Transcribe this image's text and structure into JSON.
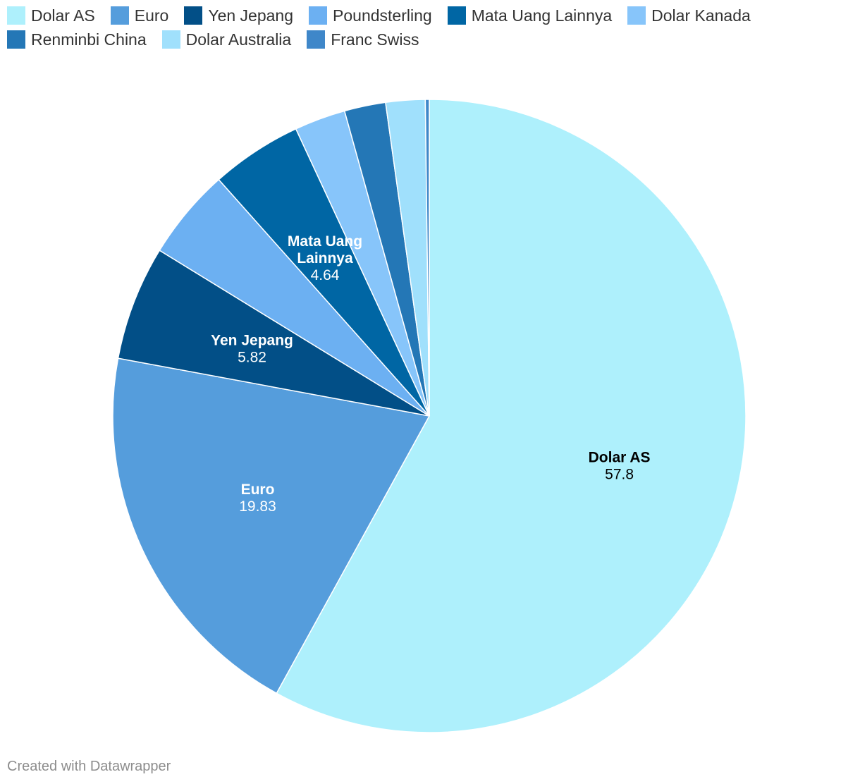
{
  "credit": "Created with Datawrapper",
  "chart_data": {
    "type": "pie",
    "title": "",
    "categories": [
      "Dolar AS",
      "Euro",
      "Yen Jepang",
      "Poundsterling",
      "Mata Uang Lainnya",
      "Dolar Kanada",
      "Renminbi China",
      "Dolar Australia",
      "Franc Swiss"
    ],
    "values": [
      57.8,
      19.83,
      5.82,
      4.64,
      4.64,
      2.6,
      2.1,
      2.0,
      0.2
    ],
    "colors": [
      "#aef0fc",
      "#559ddc",
      "#024f87",
      "#6cb0f2",
      "#0066a4",
      "#87c5fa",
      "#2477b6",
      "#a0e0fc",
      "#3f87c9"
    ],
    "data_labels": [
      {
        "index": 0,
        "name": "Dolar AS",
        "value": "57.8",
        "name_lines": [
          "Dolar AS"
        ],
        "color": "#000000"
      },
      {
        "index": 1,
        "name": "Euro",
        "value": "19.83",
        "name_lines": [
          "Euro"
        ],
        "color": "#ffffff"
      },
      {
        "index": 2,
        "name": "Yen Jepang",
        "value": "5.82",
        "name_lines": [
          "Yen Jepang"
        ],
        "color": "#ffffff"
      },
      {
        "index": 4,
        "name": "Mata Uang Lainnya",
        "value": "4.64",
        "name_lines": [
          "Mata Uang",
          "Lainnya"
        ],
        "color": "#ffffff"
      }
    ],
    "legend": {
      "position": "top-left"
    }
  }
}
